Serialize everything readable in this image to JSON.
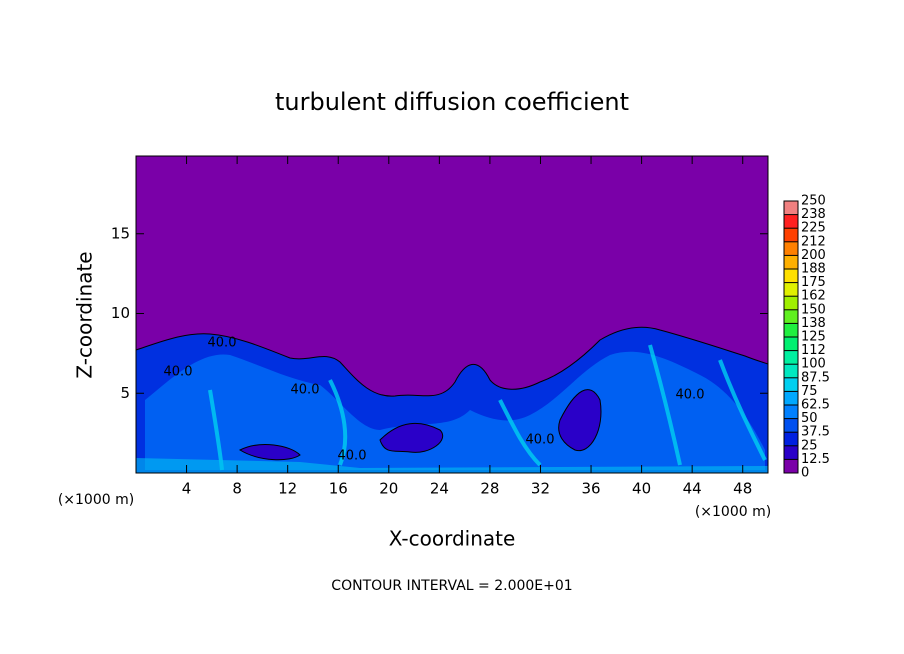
{
  "chart_data": {
    "type": "contour",
    "title": "turbulent diffusion coefficient",
    "xlabel": "X-coordinate",
    "ylabel": "Z-coordinate",
    "xunit_left": "(×1000 m)",
    "xunit_right": "(×1000 m)",
    "footer": "CONTOUR INTERVAL = 2.000E+01",
    "xlim": [
      0,
      50
    ],
    "xticks": [
      4,
      8,
      12,
      16,
      20,
      24,
      28,
      32,
      36,
      40,
      44,
      48
    ],
    "ylim": [
      0,
      20
    ],
    "yticks": [
      5,
      10,
      15
    ],
    "contour_labels": [
      "40.0",
      "40.0",
      "40.0",
      "40.0",
      "40.0",
      "40.0"
    ],
    "colorbar": {
      "ticks": [
        0,
        12.5,
        25,
        37.5,
        50,
        62.5,
        75,
        87.5,
        100,
        112,
        125,
        138,
        150,
        162,
        175,
        188,
        200,
        212,
        225,
        238,
        250
      ],
      "colors": [
        "#7a00a8",
        "#2a00c8",
        "#0020e0",
        "#0050f0",
        "#0080ff",
        "#00a8ff",
        "#00d0f0",
        "#00e8c0",
        "#00f0a0",
        "#00f070",
        "#20f040",
        "#60f020",
        "#a0f000",
        "#e0f000",
        "#ffe000",
        "#ffb000",
        "#ff8000",
        "#ff4000",
        "#ff2020",
        "#f08080"
      ]
    }
  }
}
